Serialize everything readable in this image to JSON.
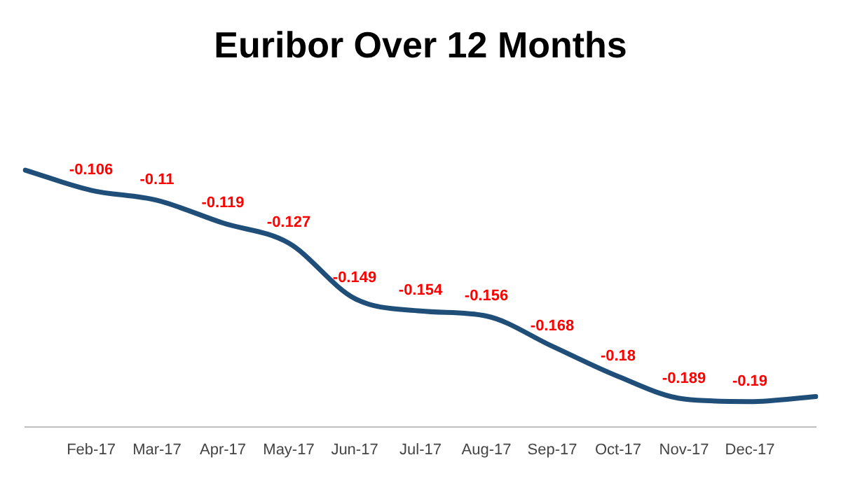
{
  "chart_data": {
    "type": "line",
    "title": "Euribor Over 12 Months",
    "categories": [
      null,
      "Feb-17",
      "Mar-17",
      "Apr-17",
      "May-17",
      "Jun-17",
      "Jul-17",
      "Aug-17",
      "Sep-17",
      "Oct-17",
      "Nov-17",
      "Dec-17",
      null
    ],
    "series": [
      {
        "color": "#1f4e79",
        "values": [
          -0.098,
          -0.106,
          -0.11,
          -0.119,
          -0.127,
          -0.149,
          -0.154,
          -0.156,
          -0.168,
          -0.18,
          -0.189,
          -0.19,
          -0.188
        ],
        "value_labels": [
          null,
          "-0.106",
          "-0.11",
          "-0.119",
          "-0.127",
          "-0.149",
          "-0.154",
          "-0.156",
          "-0.168",
          "-0.18",
          "-0.189",
          "-0.19",
          null
        ]
      }
    ],
    "marker": "none",
    "grid": false,
    "legend": false,
    "tick_labels": "x"
  }
}
